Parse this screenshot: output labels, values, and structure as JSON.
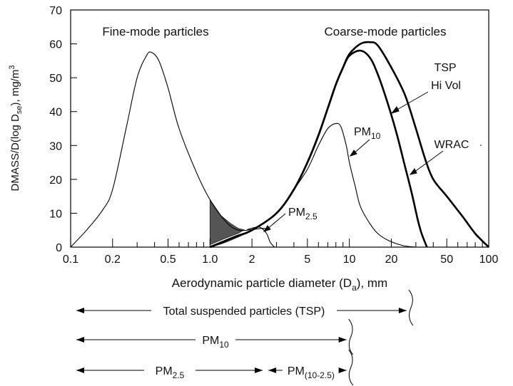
{
  "chart_data": {
    "type": "line",
    "title": "",
    "xlabel": "Aerodynamic particle diameter (D",
    "xlabel_sub": "a",
    "xlabel_tail": "), mm",
    "ylabel": "DMASS/D(log D",
    "ylabel_sub": "se",
    "ylabel_mid": "), mg/m",
    "ylabel_sup": "3",
    "x_scale": "log",
    "xlim": [
      0.1,
      100
    ],
    "ylim": [
      0,
      70
    ],
    "x_ticks": [
      0.1,
      0.2,
      0.5,
      1.0,
      2,
      5,
      10,
      20,
      50,
      100
    ],
    "x_tick_labels": [
      "0.1",
      "0.2",
      "0.5",
      "1.0",
      "2",
      "5",
      "10",
      "20",
      "50",
      "100"
    ],
    "y_ticks": [
      0,
      10,
      20,
      30,
      40,
      50,
      60,
      70
    ],
    "y_tick_labels": [
      "0",
      "10",
      "20",
      "30",
      "40",
      "50",
      "60",
      "70"
    ],
    "grid": false,
    "series": [
      {
        "name": "",
        "weight": "thin",
        "points": [
          [
            0.1,
            0
          ],
          [
            0.13,
            5
          ],
          [
            0.17,
            11
          ],
          [
            0.2,
            17
          ],
          [
            0.25,
            35
          ],
          [
            0.3,
            50
          ],
          [
            0.35,
            56.5
          ],
          [
            0.38,
            57.5
          ],
          [
            0.43,
            55
          ],
          [
            0.5,
            47
          ],
          [
            0.6,
            35
          ],
          [
            0.8,
            22
          ],
          [
            1.0,
            14
          ],
          [
            1.3,
            7.5
          ],
          [
            1.6,
            5
          ],
          [
            2.0,
            5.2
          ],
          [
            2.3,
            5.5
          ],
          [
            2.5,
            5.5
          ]
        ]
      },
      {
        "name": "PM2.5",
        "weight": "thin",
        "points": [
          [
            1.85,
            5.2
          ],
          [
            2.1,
            5.8
          ],
          [
            2.3,
            5.8
          ],
          [
            2.55,
            4
          ],
          [
            2.7,
            1.5
          ],
          [
            2.9,
            0
          ]
        ]
      },
      {
        "name": "PM10",
        "weight": "thin",
        "points": [
          [
            1.0,
            0
          ],
          [
            1.3,
            1.5
          ],
          [
            2,
            5
          ],
          [
            3,
            10
          ],
          [
            4,
            17
          ],
          [
            5,
            23
          ],
          [
            6,
            30
          ],
          [
            7,
            35
          ],
          [
            8,
            36.5
          ],
          [
            8.7,
            35.5
          ],
          [
            9.5,
            30
          ],
          [
            10,
            25
          ],
          [
            11,
            18
          ],
          [
            12,
            12
          ],
          [
            14,
            7
          ],
          [
            16,
            4
          ],
          [
            19,
            2
          ],
          [
            24,
            0.5
          ],
          [
            30,
            0
          ]
        ]
      },
      {
        "name": "TSP Hi Vol",
        "weight": "thick",
        "points": [
          [
            1.0,
            0
          ],
          [
            1.5,
            3
          ],
          [
            2,
            5
          ],
          [
            3,
            10
          ],
          [
            4,
            17
          ],
          [
            5,
            25
          ],
          [
            6,
            33
          ],
          [
            7,
            41
          ],
          [
            8,
            48
          ],
          [
            9,
            53
          ],
          [
            10,
            56.5
          ],
          [
            12,
            58
          ],
          [
            14,
            56
          ],
          [
            16,
            51
          ],
          [
            19,
            42
          ],
          [
            22,
            33
          ],
          [
            25,
            24
          ],
          [
            28,
            16
          ],
          [
            31,
            8
          ],
          [
            33,
            4
          ],
          [
            36,
            0
          ]
        ]
      },
      {
        "name": "WRAC",
        "weight": "thick",
        "points": [
          [
            1.0,
            0
          ],
          [
            1.5,
            3
          ],
          [
            2,
            5
          ],
          [
            3,
            10
          ],
          [
            4,
            17
          ],
          [
            5,
            25
          ],
          [
            6,
            33
          ],
          [
            7,
            41
          ],
          [
            8,
            48
          ],
          [
            9,
            53
          ],
          [
            10,
            57
          ],
          [
            12,
            60
          ],
          [
            14,
            60.5
          ],
          [
            16,
            59.5
          ],
          [
            20,
            53
          ],
          [
            25,
            45
          ],
          [
            30,
            35
          ],
          [
            35,
            26
          ],
          [
            40,
            20
          ],
          [
            50,
            15
          ],
          [
            65,
            9
          ],
          [
            80,
            4
          ],
          [
            100,
            0
          ]
        ]
      }
    ],
    "shaded_region": [
      [
        1.0,
        14
      ],
      [
        1.2,
        9.3
      ],
      [
        1.4,
        7
      ],
      [
        1.6,
        5.5
      ],
      [
        1.75,
        5.1
      ],
      [
        1.6,
        4.1
      ],
      [
        1.4,
        3.2
      ],
      [
        1.2,
        2.1
      ],
      [
        1.0,
        0.7
      ]
    ],
    "annotations": [
      {
        "text": "Fine-mode particles"
      },
      {
        "text": "Coarse-mode particles"
      },
      {
        "text": "TSP"
      },
      {
        "text": "Hi Vol"
      },
      {
        "text": "WRAC"
      },
      {
        "text": "PM",
        "sub": "10"
      },
      {
        "text": "PM",
        "sub": "2.5"
      }
    ],
    "size_ranges": [
      {
        "text": "Total suspended particles (TSP)",
        "sub": "",
        "from": 0.1,
        "to": 27
      },
      {
        "text": "PM",
        "sub": "10",
        "from": 0.1,
        "to": 10
      },
      {
        "text": "PM",
        "sub": "2.5",
        "from": 0.1,
        "to": 2.5
      },
      {
        "text": "PM",
        "sub": "(10-2.5)",
        "from": 2.5,
        "to": 10
      }
    ]
  }
}
